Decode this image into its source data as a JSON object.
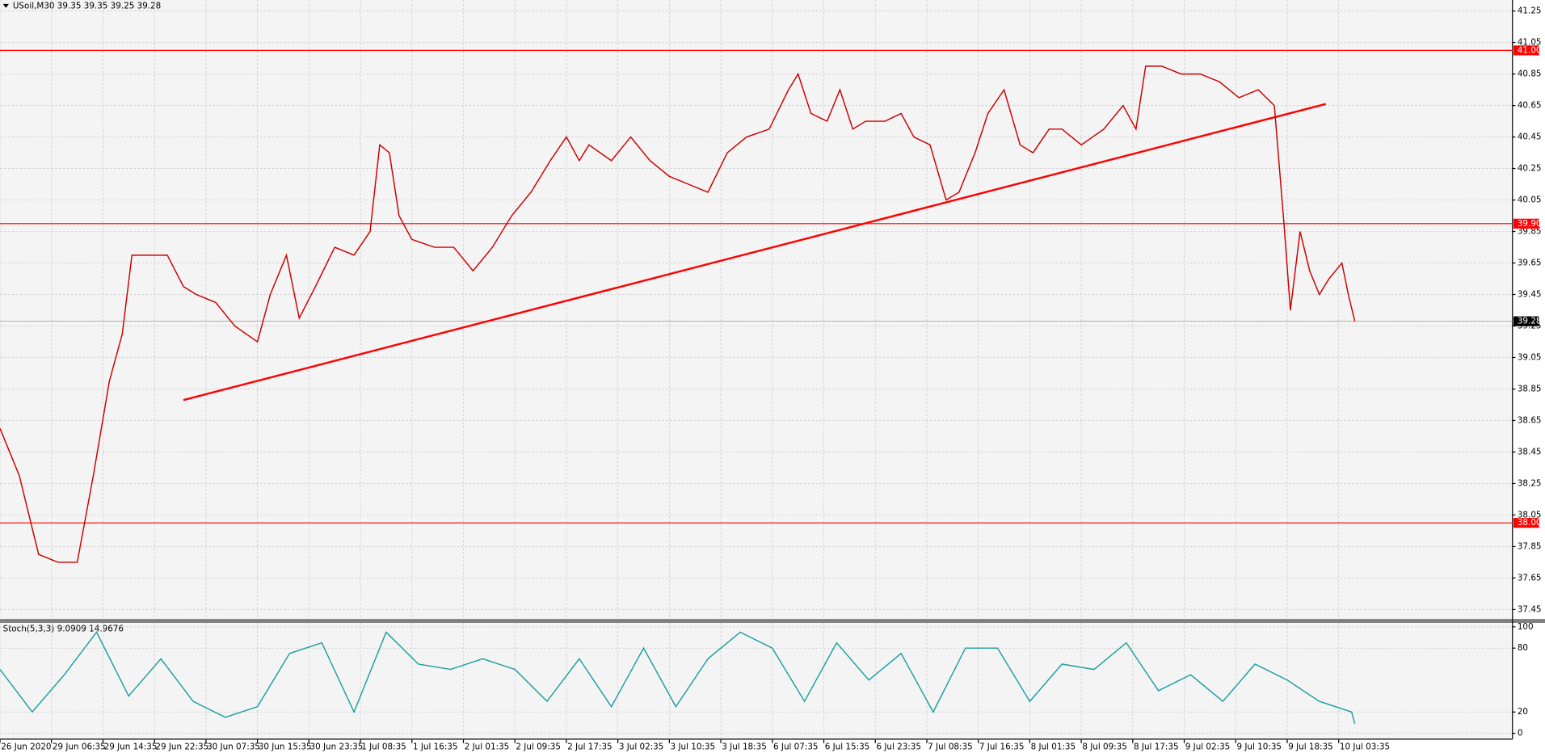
{
  "chart_data": [
    {
      "type": "line",
      "title": "USoil,M30  39.35 39.35 39.25 39.28",
      "x": [
        0,
        6,
        12,
        18,
        24,
        29,
        34,
        38,
        41,
        46,
        52,
        57,
        61,
        67,
        73,
        80,
        84,
        89,
        93,
        98,
        104,
        110,
        115,
        118,
        121,
        124,
        128,
        135,
        141,
        147,
        153,
        159,
        165,
        171,
        176,
        180,
        183,
        190,
        196,
        202,
        208,
        214,
        220,
        226,
        232,
        239,
        245,
        248,
        252,
        257,
        261,
        265,
        269,
        275,
        280,
        284,
        289,
        294,
        298,
        303,
        307,
        312,
        317,
        321,
        326,
        330,
        336,
        343,
        349,
        353,
        356,
        361,
        367,
        373,
        379,
        385,
        391,
        396,
        399,
        401,
        404,
        407,
        410,
        413,
        417,
        419,
        421
      ],
      "values": [
        38.6,
        38.3,
        37.8,
        37.75,
        37.75,
        38.3,
        38.9,
        39.2,
        39.7,
        39.7,
        39.7,
        39.5,
        39.45,
        39.4,
        39.25,
        39.15,
        39.45,
        39.7,
        39.3,
        39.5,
        39.75,
        39.7,
        39.85,
        40.4,
        40.35,
        39.95,
        39.8,
        39.75,
        39.75,
        39.6,
        39.75,
        39.95,
        40.1,
        40.3,
        40.45,
        40.3,
        40.4,
        40.3,
        40.45,
        40.3,
        40.2,
        40.15,
        40.1,
        40.35,
        40.45,
        40.5,
        40.75,
        40.85,
        40.6,
        40.55,
        40.75,
        40.5,
        40.55,
        40.55,
        40.6,
        40.45,
        40.4,
        40.05,
        40.1,
        40.35,
        40.6,
        40.75,
        40.4,
        40.35,
        40.5,
        40.5,
        40.4,
        40.5,
        40.65,
        40.5,
        40.9,
        40.9,
        40.85,
        40.85,
        40.8,
        40.7,
        40.75,
        40.65,
        39.9,
        39.35,
        39.85,
        39.6,
        39.45,
        39.55,
        39.65,
        39.45,
        39.28
      ],
      "color": "#cc0000",
      "xlim": [
        0,
        470
      ],
      "xticks": [
        {
          "value": 0,
          "label": "26 Jun 2020"
        },
        {
          "value": 16,
          "label": "29 Jun 06:35"
        },
        {
          "value": 32,
          "label": "29 Jun 14:35"
        },
        {
          "value": 48,
          "label": "29 Jun 22:35"
        },
        {
          "value": 64,
          "label": "30 Jun 07:35"
        },
        {
          "value": 80,
          "label": "30 Jun 15:35"
        },
        {
          "value": 96,
          "label": "30 Jun 23:35"
        },
        {
          "value": 112,
          "label": "1 Jul 08:35"
        },
        {
          "value": 128,
          "label": "1 Jul 16:35"
        },
        {
          "value": 144,
          "label": "2 Jul 01:35"
        },
        {
          "value": 160,
          "label": "2 Jul 09:35"
        },
        {
          "value": 176,
          "label": "2 Jul 17:35"
        },
        {
          "value": 192,
          "label": "3 Jul 02:35"
        },
        {
          "value": 208,
          "label": "3 Jul 10:35"
        },
        {
          "value": 224,
          "label": "3 Jul 18:35"
        },
        {
          "value": 240,
          "label": "6 Jul 07:35"
        },
        {
          "value": 256,
          "label": "6 Jul 15:35"
        },
        {
          "value": 272,
          "label": "6 Jul 23:35"
        },
        {
          "value": 288,
          "label": "7 Jul 08:35"
        },
        {
          "value": 304,
          "label": "7 Jul 16:35"
        },
        {
          "value": 320,
          "label": "8 Jul 01:35"
        },
        {
          "value": 336,
          "label": "8 Jul 09:35"
        },
        {
          "value": 352,
          "label": "8 Jul 17:35"
        },
        {
          "value": 368,
          "label": "9 Jul 02:35"
        },
        {
          "value": 384,
          "label": "9 Jul 10:35"
        },
        {
          "value": 400,
          "label": "9 Jul 18:35"
        },
        {
          "value": 416,
          "label": "10 Jul 03:35"
        }
      ],
      "ylim": [
        37.39,
        41.32
      ],
      "yticks": [
        41.25,
        41.05,
        40.85,
        40.65,
        40.45,
        40.25,
        40.05,
        39.85,
        39.65,
        39.45,
        39.25,
        39.05,
        38.85,
        38.65,
        38.45,
        38.25,
        38.05,
        37.85,
        37.65,
        37.45
      ],
      "grid": true,
      "hlines": [
        {
          "value": 41.0,
          "label": "41.00"
        },
        {
          "value": 39.9,
          "label": "39.90"
        },
        {
          "value": 38.0,
          "label": "38.00"
        }
      ],
      "hline_color": "#ff0000",
      "last_price": 39.28,
      "trendline": {
        "x": [
          57,
          412
        ],
        "y": [
          38.78,
          40.66
        ],
        "color": "#ff0000"
      }
    },
    {
      "type": "line",
      "title": "Stoch(5,3,3) 9.0909 14.9676",
      "x": [
        0,
        10,
        20,
        30,
        40,
        50,
        60,
        70,
        80,
        90,
        100,
        110,
        120,
        130,
        140,
        150,
        160,
        170,
        180,
        190,
        200,
        210,
        220,
        230,
        240,
        250,
        260,
        270,
        280,
        290,
        300,
        310,
        320,
        330,
        340,
        350,
        360,
        370,
        380,
        390,
        400,
        410,
        420,
        421
      ],
      "values": [
        60,
        20,
        55,
        95,
        35,
        70,
        30,
        15,
        25,
        75,
        85,
        20,
        95,
        65,
        60,
        70,
        60,
        30,
        70,
        25,
        80,
        25,
        70,
        95,
        80,
        30,
        85,
        50,
        75,
        20,
        80,
        80,
        30,
        65,
        60,
        85,
        40,
        55,
        30,
        65,
        50,
        30,
        20,
        9.0909
      ],
      "color": "#20a0a0",
      "ylim": [
        0,
        100
      ],
      "yticks": [
        100,
        80,
        20,
        0
      ]
    }
  ]
}
